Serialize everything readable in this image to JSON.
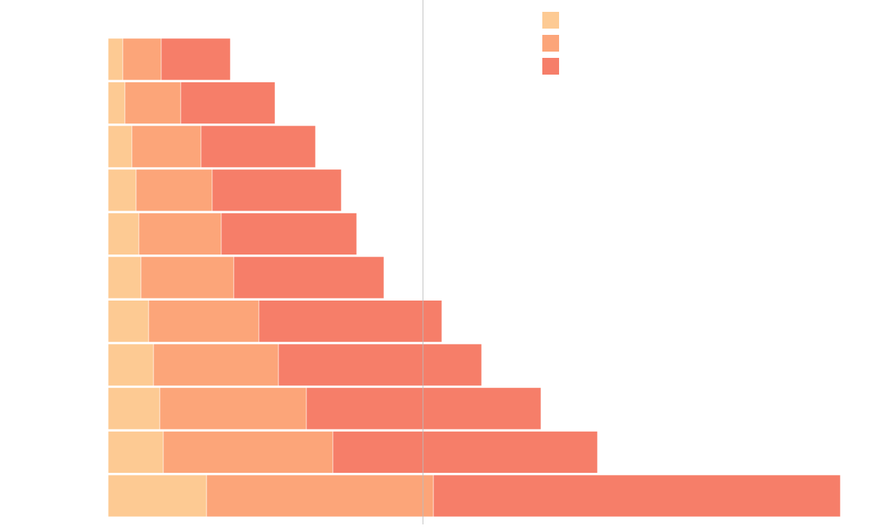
{
  "chart_data": {
    "type": "stacked_bar_horizontal",
    "categories": [
      null,
      null,
      null,
      null,
      null,
      null,
      null,
      null,
      null,
      null,
      null
    ],
    "series": [
      {
        "color": "#fdca93",
        "values": [
          21,
          24,
          34,
          40,
          44,
          47,
          58,
          65,
          74,
          79,
          141
        ]
      },
      {
        "color": "#fca579",
        "values": [
          55,
          80,
          99,
          109,
          118,
          133,
          158,
          179,
          210,
          243,
          325
        ]
      },
      {
        "color": "#f67e69",
        "values": [
          99,
          135,
          164,
          185,
          194,
          215,
          262,
          291,
          336,
          379,
          583
        ]
      }
    ],
    "xlim": [
      0,
      1049
    ],
    "reference_line": 451,
    "legend": "top"
  }
}
